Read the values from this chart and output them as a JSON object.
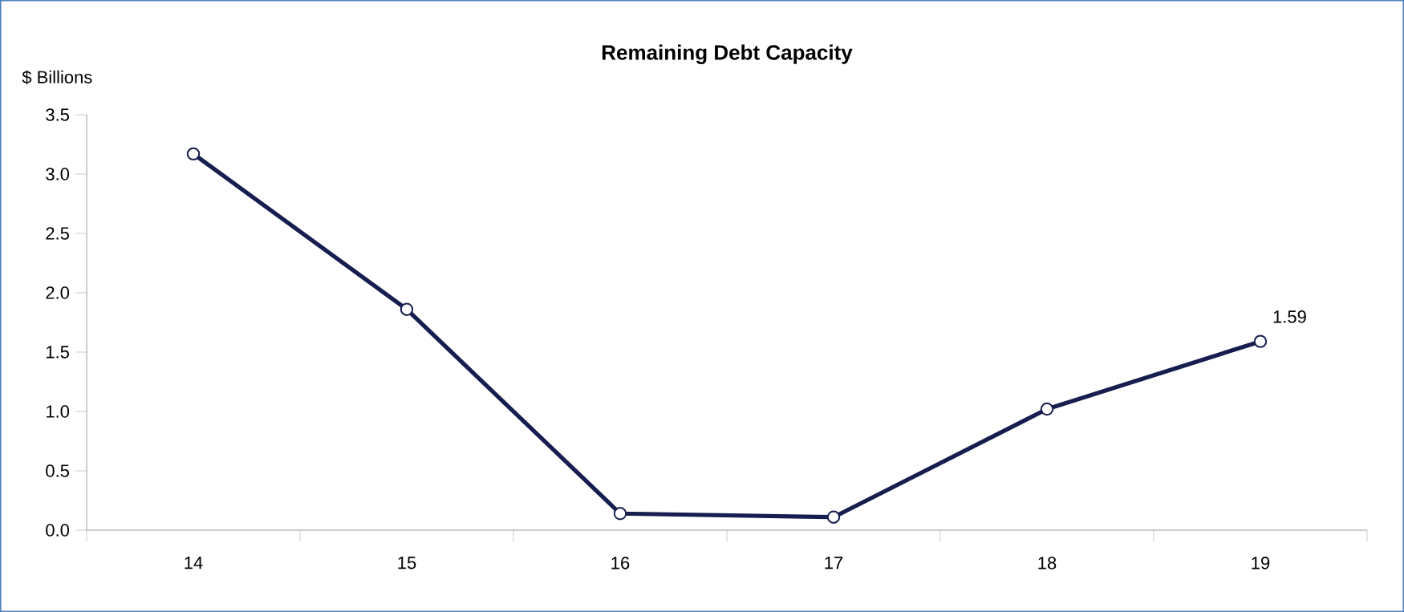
{
  "chart_data": {
    "type": "line",
    "title": "Remaining Debt Capacity",
    "ylabel": "$ Billions",
    "categories": [
      "14",
      "15",
      "16",
      "17",
      "18",
      "19"
    ],
    "series": [
      {
        "color": "#161d4f",
        "values": [
          3.17,
          1.86,
          0.14,
          0.11,
          1.02,
          1.59
        ],
        "value_labels": [
          null,
          null,
          null,
          null,
          null,
          "1.59"
        ]
      }
    ],
    "ylim": [
      0,
      3.5
    ],
    "yticks": [
      "0.0",
      "0.5",
      "1.0",
      "1.5",
      "2.0",
      "2.5",
      "3.0",
      "3.5"
    ],
    "marker": "circle",
    "line_style": "solid",
    "grid": false
  }
}
